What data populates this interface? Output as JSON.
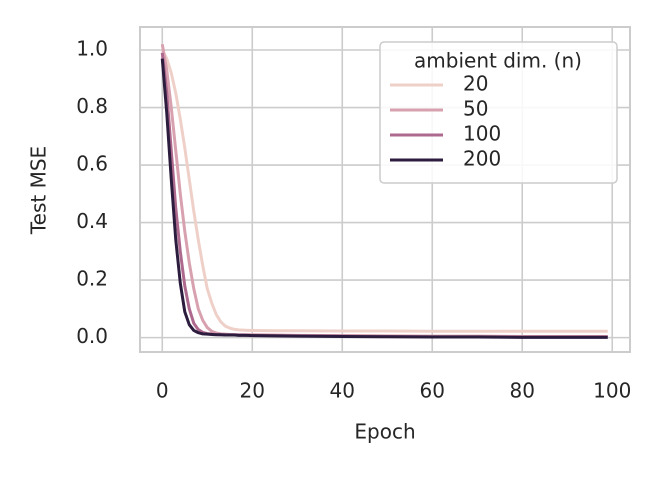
{
  "chart_data": {
    "type": "line",
    "x_label": "Epoch",
    "y_label": "Test MSE",
    "x": [
      0,
      1,
      2,
      3,
      4,
      5,
      6,
      7,
      8,
      9,
      10,
      11,
      12,
      13,
      14,
      15,
      16,
      17,
      18,
      19,
      20,
      25,
      30,
      40,
      50,
      60,
      70,
      80,
      99
    ],
    "series": [
      {
        "name": "20",
        "color": "#efd0c9",
        "values": [
          1.0,
          0.97,
          0.92,
          0.85,
          0.76,
          0.66,
          0.55,
          0.44,
          0.34,
          0.25,
          0.17,
          0.12,
          0.08,
          0.055,
          0.04,
          0.033,
          0.029,
          0.027,
          0.026,
          0.025,
          0.025,
          0.024,
          0.024,
          0.023,
          0.023,
          0.022,
          0.022,
          0.022,
          0.022
        ]
      },
      {
        "name": "50",
        "color": "#d8a1b0",
        "values": [
          1.02,
          0.93,
          0.8,
          0.65,
          0.5,
          0.37,
          0.26,
          0.17,
          0.1,
          0.06,
          0.035,
          0.022,
          0.016,
          0.013,
          0.012,
          0.011,
          0.011,
          0.01,
          0.01,
          0.01,
          0.01,
          0.009,
          0.008,
          0.007,
          0.006,
          0.005,
          0.005,
          0.004,
          0.004
        ]
      },
      {
        "name": "100",
        "color": "#ae6a8e",
        "values": [
          0.99,
          0.85,
          0.65,
          0.45,
          0.3,
          0.18,
          0.1,
          0.05,
          0.028,
          0.018,
          0.014,
          0.012,
          0.011,
          0.01,
          0.01,
          0.01,
          0.009,
          0.009,
          0.009,
          0.008,
          0.008,
          0.007,
          0.006,
          0.005,
          0.004,
          0.003,
          0.003,
          0.002,
          0.002
        ]
      },
      {
        "name": "200",
        "color": "#2c1d3f",
        "values": [
          0.97,
          0.78,
          0.55,
          0.34,
          0.19,
          0.09,
          0.045,
          0.025,
          0.017,
          0.013,
          0.012,
          0.011,
          0.01,
          0.01,
          0.009,
          0.009,
          0.009,
          0.008,
          0.008,
          0.008,
          0.007,
          0.006,
          0.005,
          0.004,
          0.003,
          0.002,
          0.002,
          0.001,
          0.001
        ]
      }
    ],
    "legend_title": "ambient dim. (n)",
    "legend_position": "upper right",
    "xlim": [
      -4.95,
      103.95
    ],
    "xticks": [
      0,
      20,
      40,
      60,
      80,
      100
    ],
    "ylim": [
      -0.05,
      1.08
    ],
    "yticks": [
      {
        "value": 0,
        "label": "0.0"
      },
      0.2,
      0.4,
      0.6,
      0.8,
      {
        "value": 1,
        "label": "1.0"
      }
    ],
    "grid": true
  }
}
